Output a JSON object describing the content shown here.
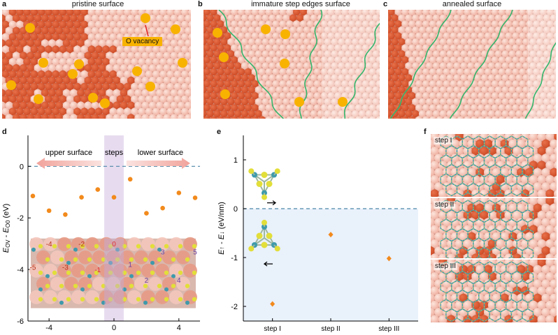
{
  "panels": {
    "a": {
      "label": "a",
      "title": "pristine surface",
      "callout": "O vacancy"
    },
    "b": {
      "label": "b",
      "title": "immature step edges surface"
    },
    "c": {
      "label": "c",
      "title": "annealed surface"
    },
    "d": {
      "label": "d"
    },
    "e": {
      "label": "e"
    },
    "f": {
      "label": "f",
      "steps": [
        "step I",
        "step II",
        "step III"
      ]
    }
  },
  "colors": {
    "bg_atom": "#eeae9e",
    "dark_atom": "#cc4a25",
    "vacancy": "#f8b200",
    "step_line": "#34b56c",
    "blue_shade": "#e9f1fb",
    "purple_band": "#e7dcef",
    "dash": "#4a86a8",
    "marker": "#f28a1c",
    "S_atom": "#e2de3a",
    "Mo_atom": "#3e9aab"
  },
  "chart_data": [
    {
      "id": "d",
      "type": "scatter",
      "ylabel_parts": {
        "a": "E",
        "a_sub": "OV",
        "mid": " - ",
        "b": "E",
        "b_sub": "O0",
        "unit": " (eV)"
      },
      "xlim": [
        -5.3,
        5.3
      ],
      "ylim": [
        -6,
        1.2
      ],
      "xticks": [
        -4,
        0,
        4
      ],
      "yticks": [
        0,
        -2,
        -4,
        -6
      ],
      "band_x": [
        -0.6,
        0.6
      ],
      "arrows": {
        "left": "upper surface",
        "center": "steps",
        "right": "lower surface"
      },
      "x": [
        -5,
        -4,
        -3,
        -2,
        -1,
        0,
        1,
        2,
        3,
        4,
        5
      ],
      "y": [
        -1.15,
        -1.72,
        -1.87,
        -1.2,
        -0.9,
        -1.2,
        -0.5,
        -1.82,
        -1.62,
        -1.03,
        -1.22
      ],
      "inset_labels": [
        {
          "text": "-4",
          "k": 0
        },
        {
          "text": "-2",
          "k": 0
        },
        {
          "text": "0",
          "k": 1
        },
        {
          "text": "3",
          "k": 2
        },
        {
          "text": "5",
          "k": 2
        },
        {
          "text": "-3",
          "k": 0
        },
        {
          "text": "-1",
          "k": 1
        },
        {
          "text": "1",
          "k": 2
        },
        {
          "text": "-5",
          "k": 0
        },
        {
          "text": "2",
          "k": 2
        },
        {
          "text": "4",
          "k": 2
        }
      ]
    },
    {
      "id": "e",
      "type": "scatter",
      "ylabel_parts": {
        "a": "E",
        "a_sub": "↑",
        "mid": " - ",
        "b": "E",
        "b_sub": "↓",
        "unit": " (eV/nm)"
      },
      "categories": [
        "step I",
        "step II",
        "step III"
      ],
      "values": [
        -1.95,
        -0.53,
        -1.02
      ],
      "ylim": [
        -2.3,
        1.5
      ],
      "yticks": [
        1,
        0,
        -1,
        -2
      ]
    }
  ]
}
